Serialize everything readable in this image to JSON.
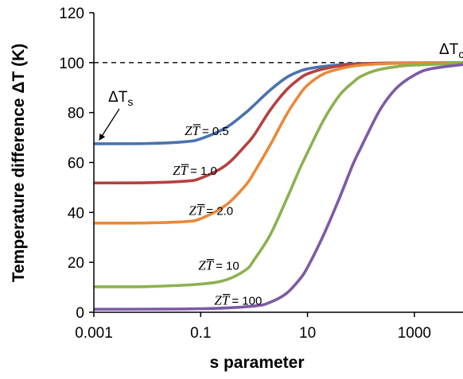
{
  "chart_data": {
    "type": "line",
    "title": "",
    "xlabel": "s parameter",
    "ylabel": "Temperature difference ΔT (K)",
    "xscale": "log",
    "xlim": [
      0.001,
      10000
    ],
    "ylim": [
      0,
      120
    ],
    "x_ticks": [
      0.001,
      0.1,
      10,
      1000
    ],
    "x_tick_labels": [
      "0.001",
      "0.1",
      "10",
      "1000"
    ],
    "y_ticks": [
      0,
      20,
      40,
      60,
      80,
      100,
      120
    ],
    "y_tick_labels": [
      "0",
      "20",
      "40",
      "60",
      "80",
      "100",
      "120"
    ],
    "grid": false,
    "legend": "none",
    "reference_line": {
      "y": 100,
      "style": "dashed"
    },
    "series": [
      {
        "label_prefix": "ZT",
        "label_value": "= 0.5",
        "color": "#4a72b0",
        "x": [
          0.001,
          0.01,
          0.05,
          0.1,
          0.3,
          0.7,
          1,
          2,
          4,
          7,
          10,
          20,
          50,
          100,
          300,
          1000,
          10000
        ],
        "y": [
          67.5,
          67.6,
          68.3,
          69.5,
          74,
          80,
          83,
          89,
          94,
          96.5,
          97.5,
          98.5,
          99.3,
          99.6,
          99.8,
          99.9,
          100
        ]
      },
      {
        "label_prefix": "ZT",
        "label_value": "= 1.0",
        "color": "#b5413f",
        "x": [
          0.001,
          0.01,
          0.05,
          0.1,
          0.3,
          0.7,
          1,
          2,
          4,
          7,
          10,
          20,
          50,
          100,
          300,
          1000,
          10000
        ],
        "y": [
          51.8,
          51.9,
          52.5,
          53.7,
          59,
          67,
          71,
          81,
          89,
          93.5,
          95.5,
          97.5,
          99,
          99.5,
          99.8,
          99.9,
          100
        ]
      },
      {
        "label_prefix": "ZT",
        "label_value": "= 2.0",
        "color": "#e9893a",
        "x": [
          0.001,
          0.01,
          0.05,
          0.1,
          0.3,
          0.7,
          1,
          2,
          4,
          7,
          10,
          20,
          50,
          100,
          300,
          1000,
          10000
        ],
        "y": [
          35.7,
          35.8,
          36.3,
          37.5,
          43,
          51,
          56,
          67,
          79,
          87,
          91,
          95.5,
          98,
          99,
          99.6,
          99.8,
          100
        ]
      },
      {
        "label_prefix": "ZT",
        "label_value": "= 10",
        "color": "#8cb150",
        "x": [
          0.001,
          0.01,
          0.1,
          0.3,
          0.7,
          1,
          2,
          4,
          7,
          10,
          20,
          40,
          70,
          100,
          200,
          500,
          1000,
          10000
        ],
        "y": [
          10.2,
          10.3,
          11.3,
          13,
          17,
          21,
          31,
          45,
          57,
          64,
          77,
          87,
          92,
          94.5,
          97,
          98.5,
          99,
          99.8
        ]
      },
      {
        "label_prefix": "ZT",
        "label_value": "= 100",
        "color": "#7c5aa6",
        "x": [
          0.001,
          0.1,
          1,
          2,
          4,
          7,
          10,
          20,
          40,
          70,
          100,
          200,
          300,
          500,
          1000,
          2000,
          10000
        ],
        "y": [
          1.2,
          1.4,
          2.5,
          4,
          7.5,
          13,
          18,
          31,
          46,
          59,
          66,
          79,
          85,
          90.5,
          95,
          97.5,
          99.5
        ]
      }
    ],
    "annotations": [
      {
        "text_base": "ΔT",
        "text_sub": "s"
      },
      {
        "text_base": "ΔT",
        "text_sub": "c"
      }
    ]
  }
}
